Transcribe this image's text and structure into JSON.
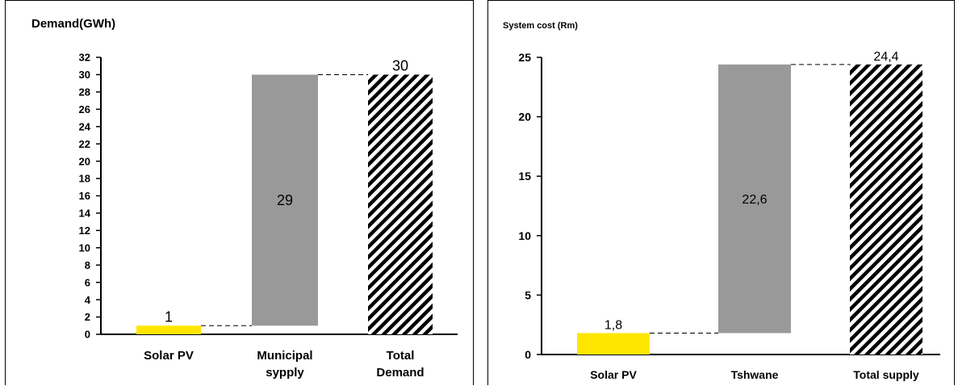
{
  "colors": {
    "solar": "#ffe600",
    "grid": "#999999",
    "hatch": "#000000",
    "axis": "#000000",
    "connector": "#000000"
  },
  "chart_data": [
    {
      "type": "bar",
      "subtype": "waterfall",
      "title": "Demand(GWh)",
      "xlabel": "",
      "ylabel": "",
      "ylim": [
        0,
        32
      ],
      "yticks": [
        "0",
        "2",
        "4",
        "6",
        "8",
        "10",
        "12",
        "14",
        "16",
        "18",
        "20",
        "22",
        "24",
        "26",
        "28",
        "30",
        "32"
      ],
      "categories": [
        [
          "Solar PV"
        ],
        [
          "Municipal",
          "sypply"
        ],
        [
          "Total",
          "Demand"
        ]
      ],
      "bars": [
        {
          "base": 0,
          "value": 1,
          "label": "1",
          "style": "solar"
        },
        {
          "base": 1,
          "value": 29,
          "label": "29",
          "style": "grid"
        },
        {
          "base": 0,
          "value": 30,
          "label": "30",
          "style": "hatch"
        }
      ],
      "grid": false,
      "legend": "none"
    },
    {
      "type": "bar",
      "subtype": "waterfall",
      "title": "System cost (Rm)",
      "xlabel": "",
      "ylabel": "",
      "ylim": [
        0,
        25
      ],
      "yticks": [
        "0",
        "5",
        "10",
        "15",
        "20",
        "25"
      ],
      "categories": [
        [
          "Solar PV"
        ],
        [
          "Tshwane"
        ],
        [
          "Total supply"
        ]
      ],
      "bars": [
        {
          "base": 0,
          "value": 1.8,
          "label": "1,8",
          "style": "solar"
        },
        {
          "base": 1.8,
          "value": 22.6,
          "label": "22,6",
          "style": "grid"
        },
        {
          "base": 0,
          "value": 24.4,
          "label": "24,4",
          "style": "hatch"
        }
      ],
      "grid": false,
      "legend": "none"
    }
  ]
}
